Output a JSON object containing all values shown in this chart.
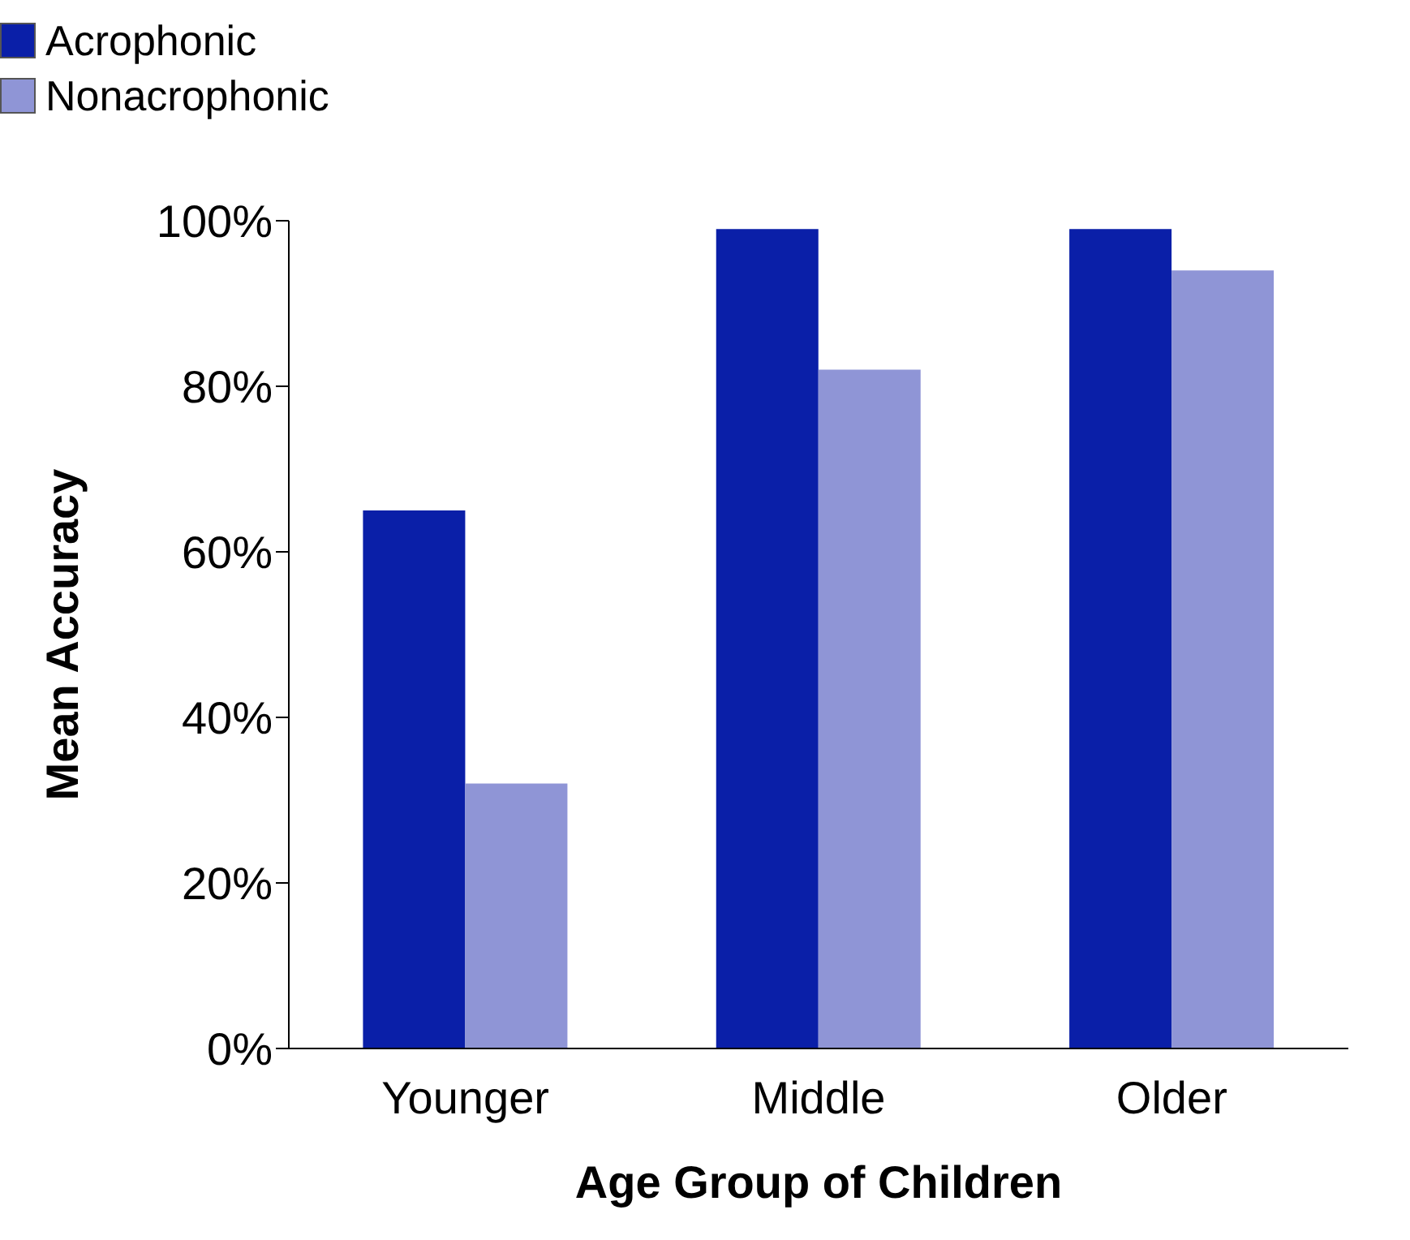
{
  "chart_data": {
    "type": "bar",
    "xlabel": "Age Group of Children",
    "ylabel": "Mean Accuracy",
    "categories": [
      "Younger",
      "Middle",
      "Older"
    ],
    "series": [
      {
        "name": "Acrophonic",
        "color": "#0a1fa8",
        "values": [
          65,
          99,
          99
        ]
      },
      {
        "name": "Nonacrophonic",
        "color": "#8f95d6",
        "values": [
          32,
          82,
          94
        ]
      }
    ],
    "ylim": [
      0,
      100
    ],
    "yticks": [
      {
        "value": 0,
        "label": "0%"
      },
      {
        "value": 20,
        "label": "20%"
      },
      {
        "value": 40,
        "label": "40%"
      },
      {
        "value": 60,
        "label": "60%"
      },
      {
        "value": 80,
        "label": "80%"
      },
      {
        "value": 100,
        "label": "100%"
      }
    ],
    "legend": "top left"
  }
}
